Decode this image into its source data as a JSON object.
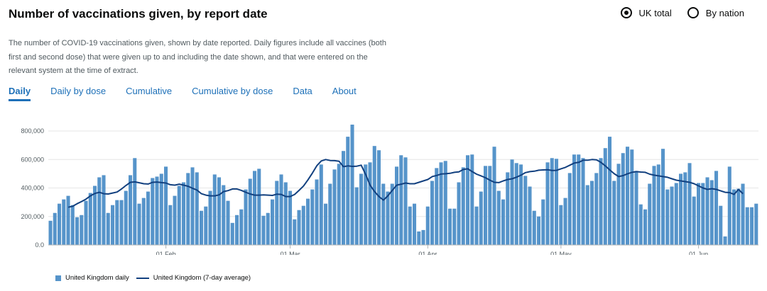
{
  "header": {
    "title": "Number of vaccinations given, by report date",
    "description": "The number of COVID-19 vaccinations given, shown by date reported. Daily figures include all vaccines (both first and second dose) that were given up to and including the date shown, and that were entered on the relevant system at the time of extract."
  },
  "radios": [
    {
      "label": "UK total",
      "checked": true
    },
    {
      "label": "By nation",
      "checked": false
    }
  ],
  "tabs": [
    {
      "label": "Daily",
      "active": true
    },
    {
      "label": "Daily by dose",
      "active": false
    },
    {
      "label": "Cumulative",
      "active": false
    },
    {
      "label": "Cumulative by dose",
      "active": false
    },
    {
      "label": "Data",
      "active": false
    },
    {
      "label": "About",
      "active": false
    }
  ],
  "colors": {
    "bar": "#5694ca",
    "line": "#12407f",
    "link": "#1d70b8"
  },
  "chart_data": {
    "type": "bar",
    "ylim": [
      0,
      850000
    ],
    "y_ticks": [
      0,
      200000,
      400000,
      600000,
      800000
    ],
    "y_tick_labels": [
      "0.0",
      "200,000",
      "400,000",
      "600,000",
      "800,000"
    ],
    "x_ticks": [
      {
        "label": "01 Feb",
        "index": 26
      },
      {
        "label": "01 Mar",
        "index": 54
      },
      {
        "label": "01 Apr",
        "index": 85
      },
      {
        "label": "01 May",
        "index": 115
      },
      {
        "label": "01 Jun",
        "index": 146
      }
    ],
    "series": [
      {
        "name": "United Kingdom daily",
        "type": "bar",
        "values": [
          170000,
          225000,
          290000,
          320000,
          345000,
          280000,
          195000,
          210000,
          310000,
          365000,
          415000,
          475000,
          490000,
          225000,
          280000,
          315000,
          315000,
          380000,
          490000,
          610000,
          290000,
          330000,
          375000,
          470000,
          480000,
          500000,
          550000,
          280000,
          345000,
          415000,
          440000,
          505000,
          545000,
          510000,
          240000,
          270000,
          380000,
          495000,
          475000,
          420000,
          310000,
          155000,
          210000,
          250000,
          390000,
          465000,
          520000,
          535000,
          205000,
          225000,
          320000,
          450000,
          495000,
          440000,
          380000,
          180000,
          245000,
          275000,
          325000,
          390000,
          460000,
          565000,
          290000,
          430000,
          530000,
          570000,
          660000,
          760000,
          845000,
          405000,
          500000,
          565000,
          580000,
          695000,
          665000,
          430000,
          375000,
          430000,
          550000,
          630000,
          615000,
          270000,
          290000,
          95000,
          105000,
          270000,
          450000,
          540000,
          580000,
          590000,
          255000,
          255000,
          440000,
          545000,
          630000,
          635000,
          270000,
          375000,
          555000,
          555000,
          690000,
          380000,
          320000,
          510000,
          600000,
          575000,
          565000,
          485000,
          410000,
          240000,
          200000,
          320000,
          580000,
          610000,
          605000,
          280000,
          330000,
          505000,
          635000,
          635000,
          610000,
          420000,
          450000,
          505000,
          610000,
          680000,
          760000,
          450000,
          570000,
          645000,
          690000,
          670000,
          520000,
          285000,
          250000,
          430000,
          555000,
          565000,
          675000,
          390000,
          410000,
          435000,
          500000,
          510000,
          575000,
          340000,
          435000,
          435000,
          475000,
          455000,
          520000,
          275000,
          60000,
          550000,
          390000,
          395000,
          430000,
          265000,
          265000,
          290000
        ]
      },
      {
        "name": "United Kingdom (7-day average)",
        "type": "line",
        "values": [
          null,
          null,
          null,
          null,
          265000,
          272000,
          290000,
          305000,
          322000,
          345000,
          362000,
          370000,
          360000,
          358000,
          365000,
          372000,
          393000,
          418000,
          440000,
          443000,
          437000,
          430000,
          428000,
          440000,
          442000,
          438000,
          435000,
          423000,
          420000,
          427000,
          420000,
          412000,
          398000,
          385000,
          360000,
          350000,
          345000,
          345000,
          352000,
          375000,
          382000,
          393000,
          393000,
          383000,
          370000,
          358000,
          350000,
          350000,
          352000,
          350000,
          348000,
          357000,
          355000,
          340000,
          340000,
          355000,
          383000,
          414000,
          457000,
          505000,
          556000,
          590000,
          600000,
          593000,
          592000,
          588000,
          550000,
          555000,
          552000,
          553000,
          560000,
          495000,
          420000,
          375000,
          340000,
          315000,
          345000,
          383000,
          420000,
          427000,
          435000,
          430000,
          430000,
          440000,
          450000,
          460000,
          480000,
          488000,
          498000,
          500000,
          503000,
          510000,
          513000,
          530000,
          535000,
          515000,
          497000,
          485000,
          472000,
          455000,
          440000,
          438000,
          450000,
          460000,
          465000,
          476000,
          490000,
          508000,
          515000,
          518000,
          525000,
          527000,
          528000,
          523000,
          524000,
          535000,
          545000,
          560000,
          575000,
          580000,
          595000,
          595000,
          600000,
          598000,
          580000,
          555000,
          527000,
          500000,
          480000,
          487000,
          500000,
          510000,
          515000,
          512000,
          510000,
          497000,
          490000,
          485000,
          480000,
          475000,
          465000,
          455000,
          450000,
          445000,
          440000,
          430000,
          415000,
          400000,
          390000,
          395000,
          390000,
          380000,
          370000,
          368000,
          355000,
          390000,
          360000
        ]
      }
    ],
    "legend": [
      "United Kingdom daily",
      "United Kingdom (7-day average)"
    ]
  }
}
